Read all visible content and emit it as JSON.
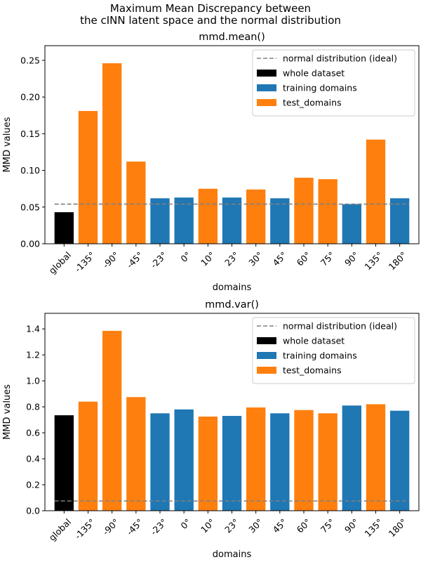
{
  "suptitle_lines": [
    "Maximum Mean Discrepancy between",
    "the cINN latent space and the normal distribution"
  ],
  "colors": {
    "whole": "#000000",
    "train": "#1f77b4",
    "test": "#ff7f0e",
    "ideal": "#808080"
  },
  "chart_data": [
    {
      "type": "bar",
      "title": "mmd.mean()",
      "xlabel": "domains",
      "ylabel": "MMD values",
      "ylim": [
        0,
        0.27
      ],
      "yticks": [
        0.0,
        0.05,
        0.1,
        0.15,
        0.2,
        0.25
      ],
      "ytick_labels": [
        "0.00",
        "0.05",
        "0.10",
        "0.15",
        "0.20",
        "0.25"
      ],
      "categories": [
        "global",
        "-135°",
        "-90°",
        "-45°",
        "-23°",
        "0°",
        "10°",
        "23°",
        "30°",
        "45°",
        "60°",
        "75°",
        "90°",
        "135°",
        "180°"
      ],
      "values": [
        0.043,
        0.181,
        0.246,
        0.112,
        0.062,
        0.063,
        0.075,
        0.063,
        0.074,
        0.062,
        0.09,
        0.088,
        0.054,
        0.142,
        0.062
      ],
      "groups": [
        "whole",
        "test",
        "test",
        "test",
        "train",
        "train",
        "test",
        "train",
        "test",
        "train",
        "test",
        "test",
        "train",
        "test",
        "train"
      ],
      "ideal_value": 0.054,
      "legend_position": "top-right",
      "legend": [
        {
          "key": "ideal",
          "label": "normal distribution (ideal)"
        },
        {
          "key": "whole",
          "label": "whole dataset"
        },
        {
          "key": "train",
          "label": "training domains"
        },
        {
          "key": "test",
          "label": "test_domains"
        }
      ]
    },
    {
      "type": "bar",
      "title": "mmd.var()",
      "xlabel": "domains",
      "ylabel": "MMD values",
      "ylim": [
        0,
        1.52
      ],
      "yticks": [
        0.0,
        0.2,
        0.4,
        0.6,
        0.8,
        1.0,
        1.2,
        1.4
      ],
      "ytick_labels": [
        "0.0",
        "0.2",
        "0.4",
        "0.6",
        "0.8",
        "1.0",
        "1.2",
        "1.4"
      ],
      "categories": [
        "global",
        "-135°",
        "-90°",
        "-45°",
        "-23°",
        "0°",
        "10°",
        "23°",
        "30°",
        "45°",
        "60°",
        "75°",
        "90°",
        "135°",
        "180°"
      ],
      "values": [
        0.735,
        0.84,
        1.385,
        0.875,
        0.75,
        0.78,
        0.725,
        0.73,
        0.795,
        0.75,
        0.775,
        0.75,
        0.81,
        0.82,
        0.77
      ],
      "groups": [
        "whole",
        "test",
        "test",
        "test",
        "train",
        "train",
        "test",
        "train",
        "test",
        "train",
        "test",
        "test",
        "train",
        "test",
        "train"
      ],
      "ideal_value": 0.075,
      "legend_position": "top-right",
      "legend": [
        {
          "key": "ideal",
          "label": "normal distribution (ideal)"
        },
        {
          "key": "whole",
          "label": "whole dataset"
        },
        {
          "key": "train",
          "label": "training domains"
        },
        {
          "key": "test",
          "label": "test_domains"
        }
      ]
    }
  ]
}
